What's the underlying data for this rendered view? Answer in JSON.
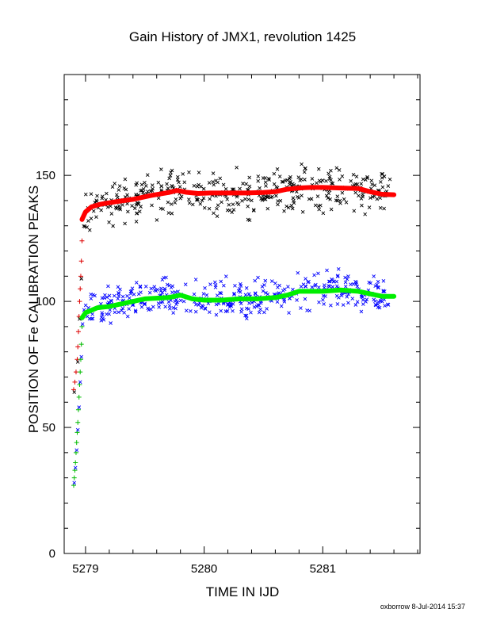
{
  "chart_data": {
    "type": "scatter",
    "title": "Gain History of JMX1, revolution 1425",
    "xlabel": "TIME IN IJD",
    "ylabel": "POSITION OF Fe CALIBRATION PEAKS",
    "xlim": [
      5278.82,
      5281.82
    ],
    "ylim": [
      0,
      190
    ],
    "x_ticks": [
      "5279",
      "5280",
      "5281"
    ],
    "y_ticks": [
      "0",
      "50",
      "100",
      "150"
    ],
    "grid": false,
    "footer": "oxborrow  8-Jul-2014 15:37",
    "colors": {
      "upper_scatter": "#000000",
      "upper_fit": "#ff0000",
      "upper_ramp": "#dd0000",
      "lower_scatter": "#0000ff",
      "lower_fit": "#00ee00",
      "lower_ramp": "#00bb00"
    },
    "series": [
      {
        "role": "upper_fit",
        "x": [
          5278.97,
          5279.0,
          5279.05,
          5279.12,
          5279.25,
          5279.4,
          5279.55,
          5279.7,
          5279.77,
          5279.85,
          5279.95,
          5280.05,
          5280.2,
          5280.35,
          5280.5,
          5280.6,
          5280.7,
          5280.8,
          5280.9,
          5281.0,
          5281.15,
          5281.3,
          5281.4,
          5281.5,
          5281.6
        ],
        "y": [
          132.5,
          135.5,
          137.5,
          138.5,
          139.5,
          140.5,
          142.0,
          143.2,
          144.0,
          143.3,
          142.8,
          143.0,
          143.0,
          143.0,
          143.2,
          143.5,
          144.5,
          145.0,
          145.2,
          145.2,
          145.0,
          144.8,
          143.5,
          142.5,
          142.3
        ]
      },
      {
        "role": "lower_fit",
        "x": [
          5278.97,
          5279.0,
          5279.05,
          5279.1,
          5279.2,
          5279.35,
          5279.5,
          5279.7,
          5279.8,
          5279.9,
          5280.0,
          5280.15,
          5280.3,
          5280.45,
          5280.6,
          5280.7,
          5280.8,
          5280.9,
          5281.0,
          5281.15,
          5281.3,
          5281.4,
          5281.5,
          5281.6
        ],
        "y": [
          93.5,
          95.5,
          96.5,
          97.5,
          98.0,
          99.5,
          101.0,
          101.5,
          102.5,
          101.0,
          100.5,
          100.5,
          101.0,
          101.0,
          101.5,
          102.5,
          104.0,
          104.0,
          104.0,
          104.5,
          104.0,
          103.0,
          102.0,
          102.0
        ]
      },
      {
        "role": "upper_ramp",
        "x": [
          5278.9,
          5278.91,
          5278.92,
          5278.93,
          5278.935,
          5278.94,
          5278.945,
          5278.95,
          5278.955,
          5278.96,
          5278.965,
          5278.97
        ],
        "y": [
          65,
          68,
          72,
          77,
          82,
          88,
          94,
          100,
          105,
          110,
          116,
          124
        ]
      },
      {
        "role": "lower_ramp",
        "x": [
          5278.9,
          5278.905,
          5278.91,
          5278.915,
          5278.92,
          5278.925,
          5278.93,
          5278.935,
          5278.94,
          5278.945,
          5278.95,
          5278.955,
          5278.96,
          5278.965,
          5278.97
        ],
        "y": [
          27,
          30,
          33,
          36,
          40,
          44,
          48,
          52,
          57,
          62,
          67,
          72,
          77,
          83,
          90
        ]
      }
    ],
    "scatter_noise": {
      "upper": {
        "x_start": 5278.98,
        "x_end": 5281.58,
        "count": 400,
        "spread": 7
      },
      "lower": {
        "x_start": 5278.98,
        "x_end": 5281.58,
        "count": 400,
        "spread": 6
      }
    }
  }
}
